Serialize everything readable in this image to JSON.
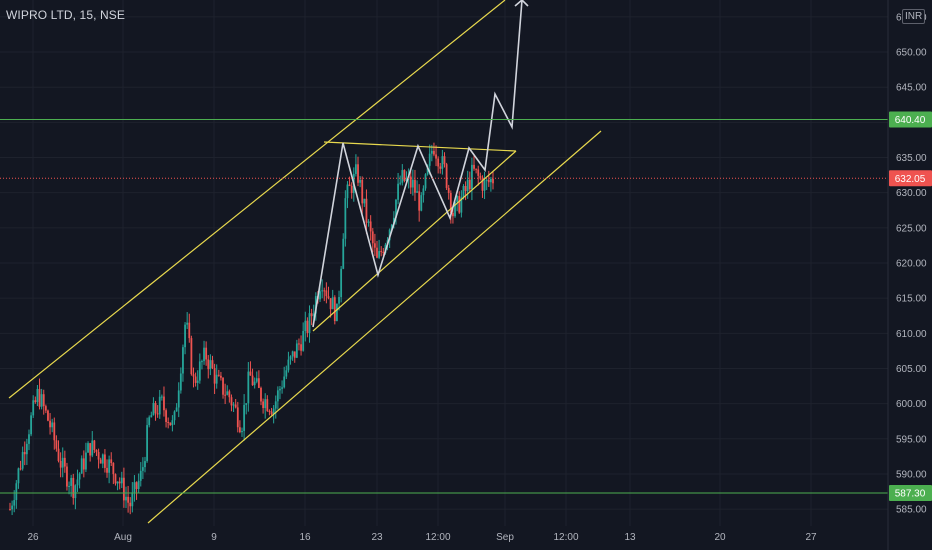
{
  "header": {
    "symbol_title": "WIPRO LTD, 15, NSE",
    "currency": "INR"
  },
  "colors": {
    "background": "#131722",
    "grid": "#1e222d",
    "candle_up": "#26a69a",
    "candle_down": "#ef5350",
    "channel_line": "#e8d94e",
    "pattern_path": "#d1d4dc",
    "level_line": "#4caf50",
    "level_tag": "#4caf50",
    "last_price_tag": "#ef5350",
    "axis_text": "#b2b5be"
  },
  "chart_data": {
    "type": "candlestick",
    "title": "WIPRO LTD, 15, NSE",
    "ylim": [
      582.6,
      657.4
    ],
    "y_ticks": [
      "585.00",
      "590.00",
      "595.00",
      "600.00",
      "605.00",
      "610.00",
      "615.00",
      "620.00",
      "625.00",
      "630.00",
      "635.00",
      "640.00",
      "645.00",
      "650.00",
      "655.00"
    ],
    "x_ticks": [
      "26",
      "Aug",
      "9",
      "16",
      "23",
      "12:00",
      "Sep",
      "12:00",
      "13",
      "20",
      "27"
    ],
    "horizontal_levels": [
      {
        "value": 640.4,
        "label": "640.40"
      },
      {
        "value": 587.3,
        "label": "587.30"
      }
    ],
    "last_price": {
      "value": 632.05,
      "label": "632.05"
    },
    "price_path": [
      [
        0.0,
        585.0
      ],
      [
        0.02,
        595.0
      ],
      [
        0.035,
        601.5
      ],
      [
        0.05,
        597.0
      ],
      [
        0.065,
        591.0
      ],
      [
        0.08,
        588.0
      ],
      [
        0.1,
        594.0
      ],
      [
        0.12,
        592.0
      ],
      [
        0.135,
        589.5
      ],
      [
        0.15,
        585.5
      ],
      [
        0.165,
        590.0
      ],
      [
        0.175,
        598.0
      ],
      [
        0.19,
        600.0
      ],
      [
        0.205,
        596.5
      ],
      [
        0.22,
        612.0
      ],
      [
        0.23,
        603.0
      ],
      [
        0.245,
        607.0
      ],
      [
        0.26,
        603.0
      ],
      [
        0.275,
        601.0
      ],
      [
        0.29,
        597.0
      ],
      [
        0.3,
        604.0
      ],
      [
        0.315,
        601.0
      ],
      [
        0.33,
        599.5
      ],
      [
        0.345,
        604.5
      ],
      [
        0.36,
        608.0
      ],
      [
        0.375,
        611.5
      ],
      [
        0.39,
        618.0
      ],
      [
        0.4,
        615.0
      ],
      [
        0.41,
        612.5
      ],
      [
        0.42,
        629.0
      ],
      [
        0.435,
        633.0
      ],
      [
        0.445,
        627.0
      ],
      [
        0.46,
        620.0
      ],
      [
        0.475,
        625.0
      ],
      [
        0.49,
        632.0
      ],
      [
        0.505,
        631.0
      ],
      [
        0.515,
        628.0
      ],
      [
        0.53,
        637.0
      ],
      [
        0.545,
        633.0
      ],
      [
        0.555,
        627.0
      ],
      [
        0.57,
        630.0
      ],
      [
        0.58,
        633.0
      ],
      [
        0.595,
        631.0
      ],
      [
        0.605,
        632.0
      ]
    ]
  }
}
